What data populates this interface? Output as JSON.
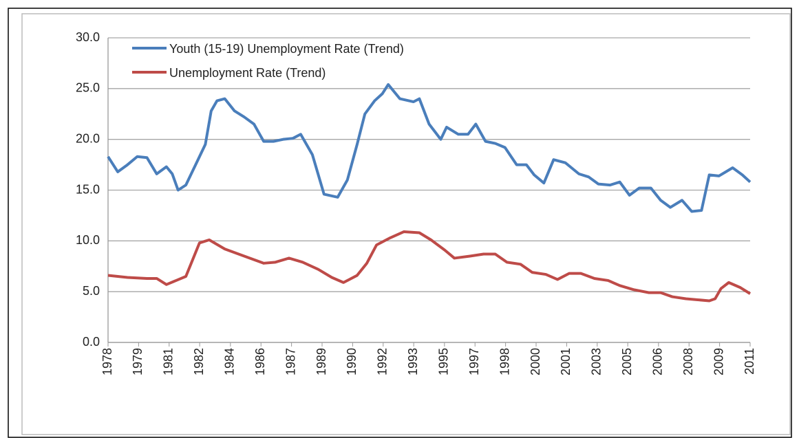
{
  "chart_data": {
    "type": "line",
    "xlim": [
      1978,
      2011
    ],
    "ylim": [
      0,
      30
    ],
    "yticks": [
      {
        "value": 0,
        "label": "0.0"
      },
      {
        "value": 5,
        "label": "5.0"
      },
      {
        "value": 10,
        "label": "10.0"
      },
      {
        "value": 15,
        "label": "15.0"
      },
      {
        "value": 20,
        "label": "20.0"
      },
      {
        "value": 25,
        "label": "25.0"
      },
      {
        "value": 30,
        "label": "30.0"
      }
    ],
    "xticks": [
      {
        "value": 1978,
        "label": "1978"
      },
      {
        "value": 1979.57,
        "label": "1979"
      },
      {
        "value": 1981.14,
        "label": "1981"
      },
      {
        "value": 1982.71,
        "label": "1982"
      },
      {
        "value": 1984.29,
        "label": "1984"
      },
      {
        "value": 1985.86,
        "label": "1986"
      },
      {
        "value": 1987.43,
        "label": "1987"
      },
      {
        "value": 1989,
        "label": "1989"
      },
      {
        "value": 1990.57,
        "label": "1990"
      },
      {
        "value": 1992.14,
        "label": "1992"
      },
      {
        "value": 1993.71,
        "label": "1993"
      },
      {
        "value": 1995.29,
        "label": "1995"
      },
      {
        "value": 1996.86,
        "label": "1997"
      },
      {
        "value": 1998.43,
        "label": "1998"
      },
      {
        "value": 2000,
        "label": "2000"
      },
      {
        "value": 2001.57,
        "label": "2001"
      },
      {
        "value": 2003.14,
        "label": "2003"
      },
      {
        "value": 2004.71,
        "label": "2005"
      },
      {
        "value": 2006.29,
        "label": "2006"
      },
      {
        "value": 2007.86,
        "label": "2008"
      },
      {
        "value": 2009.43,
        "label": "2009"
      },
      {
        "value": 2011,
        "label": "2011"
      }
    ],
    "grid": true,
    "legend": "top-left",
    "series": [
      {
        "name": "Youth (15-19) Unemployment Rate (Trend)",
        "color": "#4a7ebb",
        "x": [
          1978,
          1978.5,
          1979,
          1979.5,
          1980,
          1980.5,
          1981,
          1981.3,
          1981.6,
          1982,
          1982.5,
          1983,
          1983.3,
          1983.6,
          1984,
          1984.5,
          1985,
          1985.5,
          1986,
          1986.5,
          1987,
          1987.5,
          1987.9,
          1988.5,
          1989.1,
          1989.8,
          1990.3,
          1990.8,
          1991.2,
          1991.7,
          1992.1,
          1992.4,
          1993,
          1993.7,
          1994,
          1994.5,
          1995.1,
          1995.4,
          1996,
          1996.5,
          1996.9,
          1997.4,
          1997.9,
          1998.4,
          1999,
          1999.5,
          1999.9,
          2000.4,
          2000.9,
          2001.5,
          2002.2,
          2002.7,
          2003.2,
          2003.8,
          2004.3,
          2004.8,
          2005.3,
          2005.9,
          2006.4,
          2006.9,
          2007.5,
          2008,
          2008.5,
          2008.9,
          2009.4,
          2010.1,
          2010.6,
          2011
        ],
        "values": [
          18.3,
          16.8,
          17.5,
          18.3,
          18.2,
          16.6,
          17.3,
          16.6,
          15.0,
          15.5,
          17.5,
          19.5,
          22.8,
          23.8,
          24.0,
          22.8,
          22.2,
          21.5,
          19.8,
          19.8,
          20.0,
          20.1,
          20.5,
          18.5,
          14.6,
          14.3,
          16.0,
          19.5,
          22.5,
          23.8,
          24.5,
          25.4,
          24.0,
          23.7,
          24.0,
          21.5,
          20.0,
          21.2,
          20.5,
          20.5,
          21.5,
          19.8,
          19.6,
          19.2,
          17.5,
          17.5,
          16.5,
          15.7,
          18.0,
          17.7,
          16.6,
          16.3,
          15.6,
          15.5,
          15.8,
          14.5,
          15.2,
          15.2,
          14.0,
          13.3,
          14.0,
          12.9,
          13.0,
          16.5,
          16.4,
          17.2,
          16.5,
          15.8
        ]
      },
      {
        "name": "Unemployment Rate (Trend)",
        "color": "#be4b48",
        "x": [
          1978,
          1979,
          1980,
          1980.5,
          1981,
          1982,
          1982.7,
          1983.2,
          1984,
          1985,
          1986,
          1986.6,
          1987.3,
          1988,
          1988.8,
          1989.5,
          1990.1,
          1990.8,
          1991.3,
          1991.8,
          1992.5,
          1993.2,
          1994,
          1994.6,
          1995.3,
          1995.8,
          1996.6,
          1997.3,
          1997.9,
          1998.5,
          1999.2,
          1999.8,
          2000.5,
          2001.1,
          2001.7,
          2002.3,
          2003,
          2003.7,
          2004.3,
          2005,
          2005.8,
          2006.4,
          2007,
          2007.7,
          2008.3,
          2008.9,
          2009.2,
          2009.5,
          2009.9,
          2010.5,
          2011
        ],
        "values": [
          6.6,
          6.4,
          6.3,
          6.3,
          5.7,
          6.5,
          9.8,
          10.1,
          9.2,
          8.5,
          7.8,
          7.9,
          8.3,
          7.9,
          7.2,
          6.4,
          5.9,
          6.6,
          7.8,
          9.6,
          10.3,
          10.9,
          10.8,
          10.1,
          9.1,
          8.3,
          8.5,
          8.7,
          8.7,
          7.9,
          7.7,
          6.9,
          6.7,
          6.2,
          6.8,
          6.8,
          6.3,
          6.1,
          5.6,
          5.2,
          4.9,
          4.9,
          4.5,
          4.3,
          4.2,
          4.1,
          4.3,
          5.3,
          5.9,
          5.4,
          4.8
        ]
      }
    ]
  }
}
